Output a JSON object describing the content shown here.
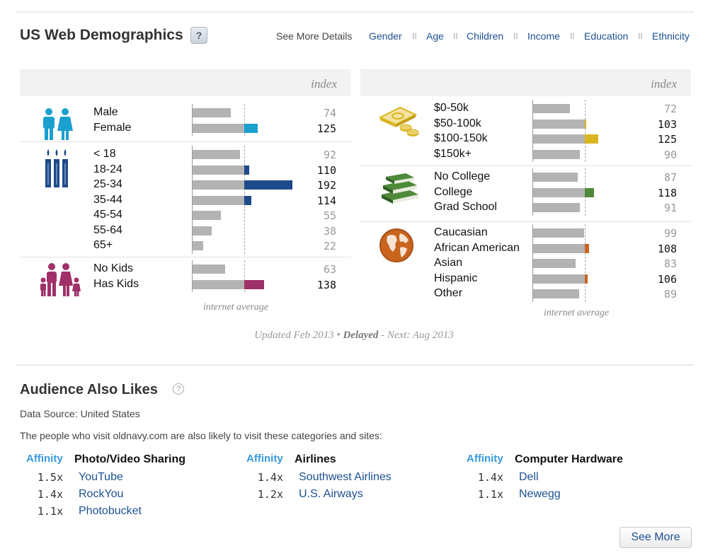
{
  "header": {
    "title": "US Web Demographics",
    "help": "?",
    "see_more": "See More Details",
    "links": [
      "Gender",
      "Age",
      "Children",
      "Income",
      "Education",
      "Ethnicity"
    ],
    "separator": "II"
  },
  "colors": {
    "gender": "#1aa0cf",
    "age": "#1d4a8a",
    "children": "#a0306a",
    "income": "#d9b520",
    "education": "#4e8a3a",
    "ethnicity": "#c9651e",
    "bar_base": "#b3b3b3"
  },
  "chart_data": [
    {
      "type": "bar",
      "panel": "left",
      "value_label": "index",
      "baseline_label": "internet average",
      "baseline": 100,
      "groups": [
        {
          "name": "gender",
          "icon": "couple-icon",
          "categories": [
            "Male",
            "Female"
          ],
          "values": [
            74,
            125
          ]
        },
        {
          "name": "age",
          "icon": "candles-icon",
          "categories": [
            "< 18",
            "18-24",
            "25-34",
            "35-44",
            "45-54",
            "55-64",
            "65+"
          ],
          "values": [
            92,
            110,
            192,
            114,
            55,
            38,
            22
          ]
        },
        {
          "name": "children",
          "icon": "family-icon",
          "categories": [
            "No Kids",
            "Has Kids"
          ],
          "values": [
            63,
            138
          ]
        }
      ]
    },
    {
      "type": "bar",
      "panel": "right",
      "value_label": "index",
      "baseline_label": "internet average",
      "baseline": 100,
      "groups": [
        {
          "name": "income",
          "icon": "money-icon",
          "categories": [
            "$0-50k",
            "$50-100k",
            "$100-150k",
            "$150k+"
          ],
          "values": [
            72,
            103,
            125,
            90
          ]
        },
        {
          "name": "education",
          "icon": "books-icon",
          "categories": [
            "No College",
            "College",
            "Grad School"
          ],
          "values": [
            87,
            118,
            91
          ]
        },
        {
          "name": "ethnicity",
          "icon": "globe-icon",
          "categories": [
            "Caucasian",
            "African American",
            "Asian",
            "Hispanic",
            "Other"
          ],
          "values": [
            99,
            108,
            83,
            106,
            89
          ]
        }
      ]
    }
  ],
  "updated": {
    "prefix": "Updated Feb 2013 • ",
    "status": "Delayed",
    "suffix": " - Next: Aug 2013"
  },
  "audience": {
    "title": "Audience Also Likes",
    "help": "?",
    "source": "Data Source: United States",
    "intro": "The people who visit oldnavy.com are also likely to visit these categories and sites:",
    "affinity_label": "Affinity",
    "columns": [
      {
        "category": "Photo/Video Sharing",
        "items": [
          {
            "mult": "1.5x",
            "site": "YouTube"
          },
          {
            "mult": "1.4x",
            "site": "RockYou"
          },
          {
            "mult": "1.1x",
            "site": "Photobucket"
          }
        ]
      },
      {
        "category": "Airlines",
        "items": [
          {
            "mult": "1.4x",
            "site": "Southwest Airlines"
          },
          {
            "mult": "1.2x",
            "site": "U.S. Airways"
          }
        ]
      },
      {
        "category": "Computer Hardware",
        "items": [
          {
            "mult": "1.4x",
            "site": "Dell"
          },
          {
            "mult": "1.1x",
            "site": "Newegg"
          }
        ]
      }
    ],
    "see_more": "See More"
  }
}
